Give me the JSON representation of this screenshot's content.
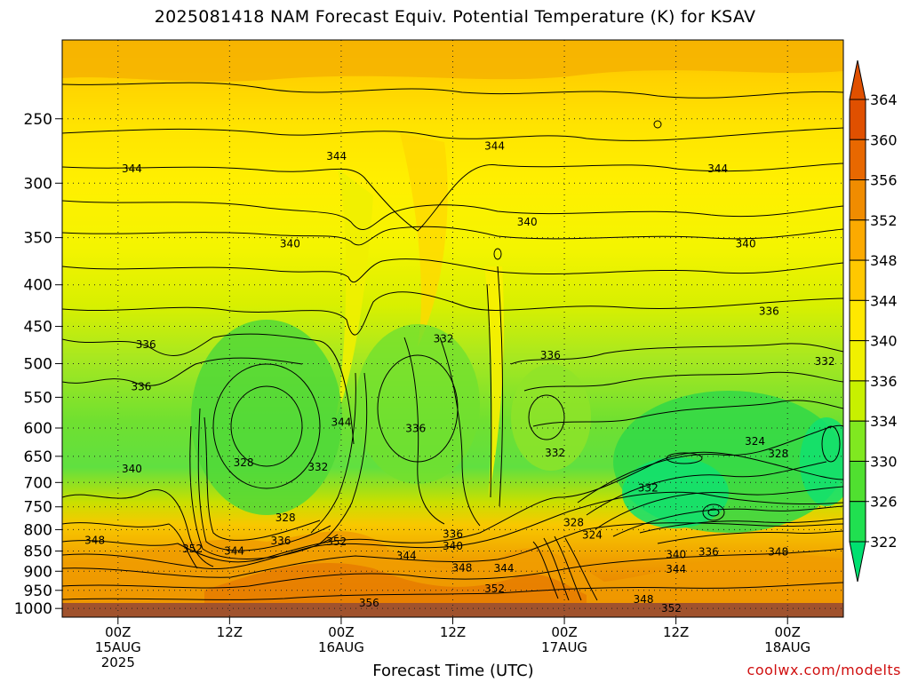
{
  "chart_data": {
    "type": "heatmap",
    "title": "2025081418 NAM Forecast Equiv. Potential Temperature (K) for KSAV",
    "xlabel": "Forecast Time (UTC)",
    "ylabel": "",
    "credit": "coolwx.com/modelts",
    "y_axis": {
      "scale": "pressure",
      "range_hpa": [
        200,
        1025
      ],
      "ticks": [
        250,
        300,
        350,
        400,
        450,
        500,
        550,
        600,
        650,
        700,
        750,
        800,
        850,
        900,
        950,
        1000
      ],
      "tick_labels": [
        "250",
        "300",
        "350",
        "400",
        "450",
        "500",
        "550",
        "600",
        "650",
        "700",
        "750",
        "800",
        "850",
        "900",
        "950",
        "1000"
      ]
    },
    "x_axis": {
      "range_hours": [
        -6,
        78
      ],
      "ticks": [
        {
          "hour": 0,
          "line1": "00Z",
          "line2": "15AUG",
          "line3": "2025"
        },
        {
          "hour": 12,
          "line1": "12Z",
          "line2": "",
          "line3": ""
        },
        {
          "hour": 24,
          "line1": "00Z",
          "line2": "16AUG",
          "line3": ""
        },
        {
          "hour": 36,
          "line1": "12Z",
          "line2": "",
          "line3": ""
        },
        {
          "hour": 48,
          "line1": "00Z",
          "line2": "17AUG",
          "line3": ""
        },
        {
          "hour": 60,
          "line1": "12Z",
          "line2": "",
          "line3": ""
        },
        {
          "hour": 72,
          "line1": "00Z",
          "line2": "18AUG",
          "line3": ""
        }
      ]
    },
    "grid": true,
    "colorbar": {
      "levels": [
        322,
        326,
        330,
        334,
        336,
        340,
        344,
        348,
        352,
        356,
        360,
        364
      ],
      "colors": [
        "#00e070",
        "#20e050",
        "#50e030",
        "#80e820",
        "#c8f000",
        "#f0f000",
        "#ffe800",
        "#ffc800",
        "#fcaa00",
        "#f08c00",
        "#e86800",
        "#e05000"
      ],
      "labels": [
        "322",
        "326",
        "330",
        "334",
        "336",
        "340",
        "344",
        "348",
        "352",
        "356",
        "360",
        "364"
      ]
    },
    "contour_labels": [
      {
        "text": "344",
        "hour": 1.5,
        "hpa": 288
      },
      {
        "text": "344",
        "hour": 23.5,
        "hpa": 278
      },
      {
        "text": "344",
        "hour": 40.5,
        "hpa": 270
      },
      {
        "text": "344",
        "hour": 64.5,
        "hpa": 288
      },
      {
        "text": "340",
        "hour": 44,
        "hpa": 335
      },
      {
        "text": "340",
        "hour": 18.5,
        "hpa": 356
      },
      {
        "text": "340",
        "hour": 67.5,
        "hpa": 356
      },
      {
        "text": "336",
        "hour": 3,
        "hpa": 474
      },
      {
        "text": "336",
        "hour": 2.5,
        "hpa": 534
      },
      {
        "text": "336",
        "hour": 70,
        "hpa": 431
      },
      {
        "text": "336",
        "hour": 46.5,
        "hpa": 488
      },
      {
        "text": "336",
        "hour": 32,
        "hpa": 601
      },
      {
        "text": "332",
        "hour": 35,
        "hpa": 466
      },
      {
        "text": "332",
        "hour": 76,
        "hpa": 497
      },
      {
        "text": "332",
        "hour": 21.5,
        "hpa": 670
      },
      {
        "text": "332",
        "hour": 47,
        "hpa": 644
      },
      {
        "text": "332",
        "hour": 57,
        "hpa": 711
      },
      {
        "text": "328",
        "hour": 13.5,
        "hpa": 662
      },
      {
        "text": "328",
        "hour": 18,
        "hpa": 773
      },
      {
        "text": "328",
        "hour": 49,
        "hpa": 784
      },
      {
        "text": "328",
        "hour": 71,
        "hpa": 645
      },
      {
        "text": "324",
        "hour": 51,
        "hpa": 812
      },
      {
        "text": "324",
        "hour": 68.5,
        "hpa": 623
      },
      {
        "text": "344",
        "hour": 24,
        "hpa": 590
      },
      {
        "text": "340",
        "hour": 1.5,
        "hpa": 674
      },
      {
        "text": "348",
        "hour": -2.5,
        "hpa": 825
      },
      {
        "text": "352",
        "hour": 8,
        "hpa": 845
      },
      {
        "text": "344",
        "hour": 12.5,
        "hpa": 850
      },
      {
        "text": "336",
        "hour": 17.5,
        "hpa": 826
      },
      {
        "text": "352",
        "hour": 23.5,
        "hpa": 828
      },
      {
        "text": "344",
        "hour": 31,
        "hpa": 862
      },
      {
        "text": "336",
        "hour": 36,
        "hpa": 810
      },
      {
        "text": "340",
        "hour": 36,
        "hpa": 838
      },
      {
        "text": "348",
        "hour": 37,
        "hpa": 892
      },
      {
        "text": "344",
        "hour": 41.5,
        "hpa": 893
      },
      {
        "text": "352",
        "hour": 40.5,
        "hpa": 946
      },
      {
        "text": "340",
        "hour": 60,
        "hpa": 859
      },
      {
        "text": "336",
        "hour": 63.5,
        "hpa": 852
      },
      {
        "text": "348",
        "hour": 71,
        "hpa": 852
      },
      {
        "text": "344",
        "hour": 60,
        "hpa": 895
      },
      {
        "text": "356",
        "hour": 27,
        "hpa": 984
      },
      {
        "text": "348",
        "hour": 56.5,
        "hpa": 975
      },
      {
        "text": "352",
        "hour": 59.5,
        "hpa": 999
      }
    ]
  }
}
